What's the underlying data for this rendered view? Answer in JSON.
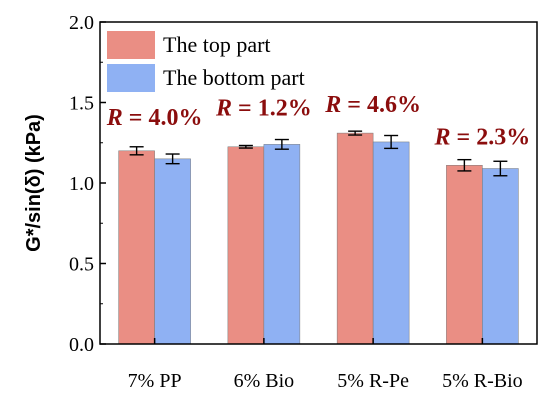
{
  "chart_data": {
    "type": "bar",
    "categories": [
      "7% PP",
      "6% Bio",
      "5% R-Pe",
      "5% R-Bio"
    ],
    "series": [
      {
        "name": "The top part",
        "values": [
          1.2,
          1.225,
          1.31,
          1.11
        ],
        "errors": [
          0.025,
          0.008,
          0.012,
          0.035
        ],
        "color": "#ea8e84"
      },
      {
        "name": "The bottom part",
        "values": [
          1.15,
          1.24,
          1.255,
          1.09
        ],
        "errors": [
          0.03,
          0.03,
          0.04,
          0.045
        ],
        "color": "#8fb1f3"
      }
    ],
    "annotations": [
      {
        "category": "7% PP",
        "symbol": "R",
        "text": " = 4.0%",
        "y": 1.36
      },
      {
        "category": "6% Bio",
        "symbol": "R",
        "text": " = 1.2%",
        "y": 1.42
      },
      {
        "category": "5% R-Pe",
        "symbol": "R",
        "text": " = 4.6%",
        "y": 1.44
      },
      {
        "category": "5% R-Bio",
        "symbol": "R",
        "text": " = 2.3%",
        "y": 1.24
      }
    ],
    "annotation_color": "#8b0d0d",
    "ylabel": "G*/sin(δ) (kPa)",
    "xlabel": "",
    "ylim": [
      0.0,
      2.0
    ],
    "yticks": [
      "0.0",
      "0.5",
      "1.0",
      "1.5",
      "2.0"
    ],
    "legend_position": "top-left",
    "grid": false
  }
}
